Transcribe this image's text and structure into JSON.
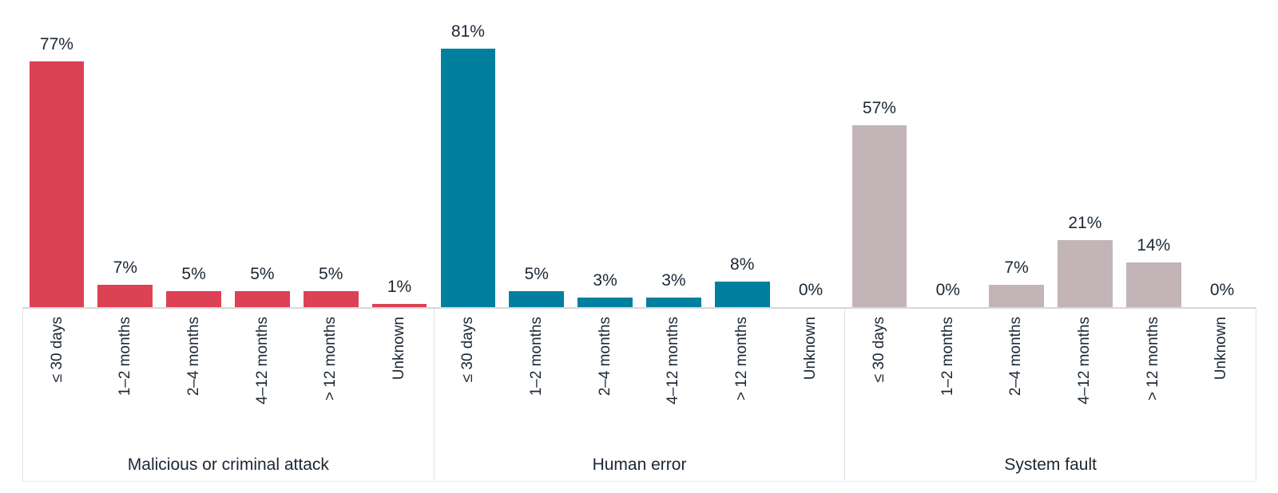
{
  "chart_data": {
    "type": "bar",
    "title": "",
    "xlabel": "",
    "ylabel": "",
    "value_suffix": "%",
    "ylim": [
      0,
      100
    ],
    "grid": false,
    "legend_position": "none",
    "categories": [
      "≤ 30 days",
      "1–2 months",
      "2–4 months",
      "4–12 months",
      "> 12 months",
      "Unknown"
    ],
    "series": [
      {
        "name": "Malicious or criminal attack",
        "color": "#dc4154",
        "values": [
          77,
          7,
          5,
          5,
          5,
          1
        ]
      },
      {
        "name": "Human error",
        "color": "#00809e",
        "values": [
          81,
          5,
          3,
          3,
          8,
          0
        ]
      },
      {
        "name": "System fault",
        "color": "#c2b4b7",
        "values": [
          57,
          0,
          7,
          21,
          14,
          0
        ]
      }
    ],
    "value_labels": [
      [
        "77%",
        "7%",
        "5%",
        "5%",
        "5%",
        "1%"
      ],
      [
        "81%",
        "5%",
        "3%",
        "3%",
        "8%",
        "0%"
      ],
      [
        "57%",
        "0%",
        "7%",
        "21%",
        "14%",
        "0%"
      ]
    ]
  },
  "colors": {
    "background": "#ffffff",
    "text": "#1b2733",
    "axis_line": "#d8d8dc",
    "frame_line": "#e3e3e6",
    "bar_malicious": "#dc4154",
    "bar_human_error": "#00809e",
    "bar_system_fault": "#c2b4b7"
  }
}
